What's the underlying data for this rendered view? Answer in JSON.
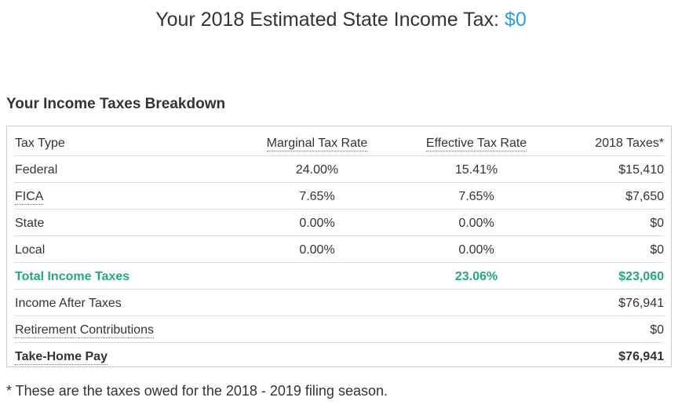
{
  "header": {
    "title_prefix": "Your 2018 Estimated State Income Tax: ",
    "title_amount": "$0",
    "accent_color": "#2a9fd8"
  },
  "breakdown": {
    "title": "Your Income Taxes Breakdown",
    "columns": {
      "tax_type": "Tax Type",
      "marginal": "Marginal Tax Rate",
      "effective": "Effective Tax Rate",
      "taxes": "2018 Taxes*"
    },
    "rows": [
      {
        "type": "Federal",
        "marginal": "24.00%",
        "effective": "15.41%",
        "taxes": "$15,410"
      },
      {
        "type": "FICA",
        "marginal": "7.65%",
        "effective": "7.65%",
        "taxes": "$7,650"
      },
      {
        "type": "State",
        "marginal": "0.00%",
        "effective": "0.00%",
        "taxes": "$0"
      },
      {
        "type": "Local",
        "marginal": "0.00%",
        "effective": "0.00%",
        "taxes": "$0"
      },
      {
        "type": "Total Income Taxes",
        "marginal": "",
        "effective": "23.06%",
        "taxes": "$23,060"
      },
      {
        "type": "Income After Taxes",
        "marginal": "",
        "effective": "",
        "taxes": "$76,941"
      },
      {
        "type": "Retirement Contributions",
        "marginal": "",
        "effective": "",
        "taxes": "$0"
      },
      {
        "type": "Take-Home Pay",
        "marginal": "",
        "effective": "",
        "taxes": "$76,941"
      }
    ],
    "total_color": "#2ba675"
  },
  "footnote": "* These are the taxes owed for the 2018 - 2019 filing season."
}
